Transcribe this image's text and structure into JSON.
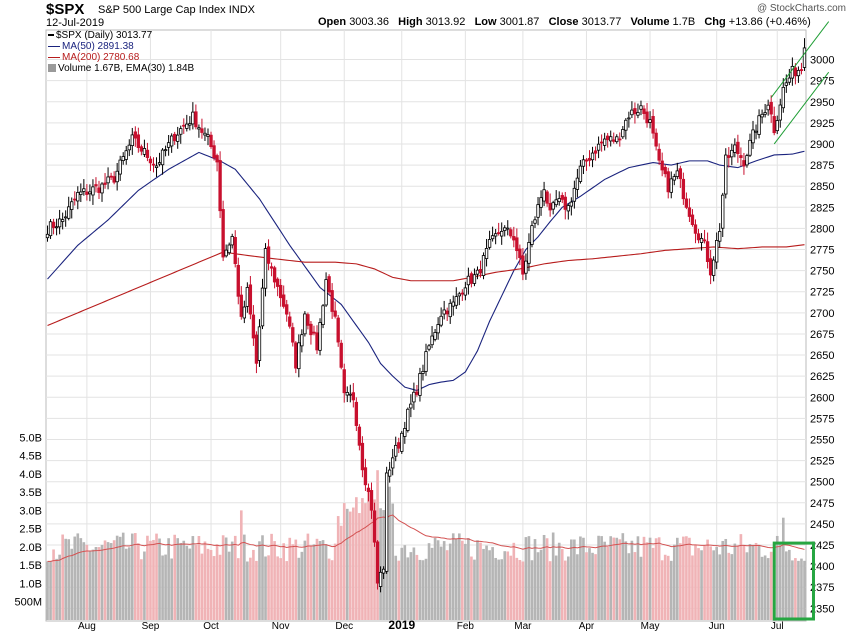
{
  "header": {
    "symbol": "$SPX",
    "description": "S&P 500 Large Cap Index",
    "exchange": "INDX",
    "date": "12-Jul-2019",
    "watermark": "@ StockCharts.com",
    "open_label": "Open",
    "open": "3003.36",
    "high_label": "High",
    "high": "3013.92",
    "low_label": "Low",
    "low": "3001.87",
    "close_label": "Close",
    "close": "3013.77",
    "volume_label": "Volume",
    "volume": "1.7B",
    "chg_label": "Chg",
    "chg": "+13.86 (+0.46%)"
  },
  "legend": {
    "price": "$SPX (Daily) 3013.77",
    "ma50": "MA(50) 2891.38",
    "ma200": "MA(200) 2780.68",
    "volume": "Volume 1.67B, EMA(30) 1.84B"
  },
  "colors": {
    "up": "#000000",
    "down": "#c8102e",
    "ma50": "#1a237e",
    "ma200": "#b71c1c",
    "grid": "#e3e3e3",
    "vol_up": "#b5b5b5",
    "vol_down": "#f0b3b6",
    "vol_ema": "#d35252",
    "trend": "#1f9e35",
    "highlight": "#26a641"
  },
  "chart_data": {
    "type": "candlestick",
    "title": "$SPX S&P 500 Large Cap Index",
    "y_axis": {
      "side": "right",
      "min": 2335,
      "max": 3035,
      "ticks": [
        2350,
        2375,
        2400,
        2425,
        2450,
        2475,
        2500,
        2525,
        2550,
        2575,
        2600,
        2625,
        2650,
        2675,
        2700,
        2725,
        2750,
        2775,
        2800,
        2825,
        2850,
        2875,
        2900,
        2925,
        2950,
        2975,
        3000
      ]
    },
    "volume_axis": {
      "side": "left",
      "min": 0,
      "max": 5.2,
      "ticks": [
        {
          "v": 0.5,
          "label": "500M"
        },
        {
          "v": 1.0,
          "label": "1.0B"
        },
        {
          "v": 1.5,
          "label": "1.5B"
        },
        {
          "v": 2.0,
          "label": "2.0B"
        },
        {
          "v": 2.5,
          "label": "2.5B"
        },
        {
          "v": 3.0,
          "label": "3.0B"
        },
        {
          "v": 3.5,
          "label": "3.5B"
        },
        {
          "v": 4.0,
          "label": "4.0B"
        },
        {
          "v": 4.5,
          "label": "4.5B"
        },
        {
          "v": 5.0,
          "label": "5.0B"
        }
      ]
    },
    "x_axis": {
      "labels": [
        {
          "label": "Aug",
          "bar": 13
        },
        {
          "label": "Sep",
          "bar": 34
        },
        {
          "label": "Oct",
          "bar": 54
        },
        {
          "label": "Nov",
          "bar": 77
        },
        {
          "label": "Dec",
          "bar": 98
        },
        {
          "label": "2019",
          "bar": 117,
          "bold": true
        },
        {
          "label": "Feb",
          "bar": 138
        },
        {
          "label": "Mar",
          "bar": 157
        },
        {
          "label": "Apr",
          "bar": 178
        },
        {
          "label": "May",
          "bar": 199
        },
        {
          "label": "Jun",
          "bar": 221
        },
        {
          "label": "Jul",
          "bar": 241
        }
      ]
    },
    "close_anchors": [
      [
        0,
        2800
      ],
      [
        5,
        2810
      ],
      [
        10,
        2840
      ],
      [
        18,
        2850
      ],
      [
        22,
        2860
      ],
      [
        28,
        2905
      ],
      [
        36,
        2875
      ],
      [
        42,
        2910
      ],
      [
        48,
        2932
      ],
      [
        53,
        2905
      ],
      [
        56,
        2880
      ],
      [
        58,
        2768
      ],
      [
        61,
        2790
      ],
      [
        64,
        2690
      ],
      [
        66,
        2725
      ],
      [
        69,
        2640
      ],
      [
        72,
        2770
      ],
      [
        76,
        2730
      ],
      [
        79,
        2700
      ],
      [
        82,
        2640
      ],
      [
        85,
        2700
      ],
      [
        89,
        2660
      ],
      [
        92,
        2740
      ],
      [
        95,
        2690
      ],
      [
        98,
        2600
      ],
      [
        101,
        2600
      ],
      [
        104,
        2520
      ],
      [
        107,
        2470
      ],
      [
        109,
        2380
      ],
      [
        111,
        2400
      ],
      [
        112,
        2505
      ],
      [
        114,
        2530
      ],
      [
        116,
        2545
      ],
      [
        118,
        2570
      ],
      [
        122,
        2610
      ],
      [
        126,
        2660
      ],
      [
        130,
        2700
      ],
      [
        134,
        2710
      ],
      [
        138,
        2735
      ],
      [
        142,
        2745
      ],
      [
        146,
        2780
      ],
      [
        150,
        2800
      ],
      [
        154,
        2790
      ],
      [
        157,
        2745
      ],
      [
        160,
        2800
      ],
      [
        164,
        2850
      ],
      [
        166,
        2815
      ],
      [
        168,
        2832
      ],
      [
        172,
        2825
      ],
      [
        176,
        2870
      ],
      [
        180,
        2890
      ],
      [
        184,
        2905
      ],
      [
        188,
        2905
      ],
      [
        192,
        2935
      ],
      [
        196,
        2943
      ],
      [
        199,
        2925
      ],
      [
        202,
        2875
      ],
      [
        205,
        2850
      ],
      [
        208,
        2865
      ],
      [
        211,
        2830
      ],
      [
        214,
        2800
      ],
      [
        217,
        2780
      ],
      [
        219,
        2750
      ],
      [
        222,
        2800
      ],
      [
        224,
        2880
      ],
      [
        227,
        2895
      ],
      [
        230,
        2880
      ],
      [
        234,
        2920
      ],
      [
        238,
        2950
      ],
      [
        240,
        2918
      ],
      [
        243,
        2965
      ],
      [
        246,
        2985
      ],
      [
        249,
        2990
      ],
      [
        250,
        3013.77
      ]
    ],
    "moving_averages": [
      {
        "name": "MA(50)",
        "value": 2891.38,
        "values": [
          [
            0,
            2740
          ],
          [
            10,
            2780
          ],
          [
            20,
            2810
          ],
          [
            30,
            2845
          ],
          [
            40,
            2870
          ],
          [
            50,
            2890
          ],
          [
            57,
            2880
          ],
          [
            62,
            2870
          ],
          [
            70,
            2835
          ],
          [
            80,
            2780
          ],
          [
            90,
            2730
          ],
          [
            97,
            2710
          ],
          [
            101,
            2690
          ],
          [
            106,
            2665
          ],
          [
            110,
            2640
          ],
          [
            114,
            2625
          ],
          [
            118,
            2612
          ],
          [
            122,
            2608
          ],
          [
            126,
            2615
          ],
          [
            130,
            2618
          ],
          [
            134,
            2620
          ],
          [
            138,
            2630
          ],
          [
            142,
            2655
          ],
          [
            146,
            2690
          ],
          [
            150,
            2720
          ],
          [
            154,
            2750
          ],
          [
            158,
            2775
          ],
          [
            162,
            2790
          ],
          [
            166,
            2808
          ],
          [
            170,
            2825
          ],
          [
            176,
            2838
          ],
          [
            184,
            2858
          ],
          [
            192,
            2872
          ],
          [
            200,
            2878
          ],
          [
            206,
            2875
          ],
          [
            212,
            2880
          ],
          [
            218,
            2880
          ],
          [
            222,
            2875
          ],
          [
            228,
            2872
          ],
          [
            234,
            2880
          ],
          [
            240,
            2887
          ],
          [
            246,
            2888
          ],
          [
            250,
            2891.38
          ]
        ]
      },
      {
        "name": "MA(200)",
        "value": 2780.68,
        "values": [
          [
            0,
            2685
          ],
          [
            10,
            2700
          ],
          [
            20,
            2715
          ],
          [
            30,
            2730
          ],
          [
            40,
            2745
          ],
          [
            50,
            2760
          ],
          [
            58,
            2772
          ],
          [
            66,
            2768
          ],
          [
            75,
            2764
          ],
          [
            85,
            2760
          ],
          [
            95,
            2760
          ],
          [
            102,
            2758
          ],
          [
            108,
            2752
          ],
          [
            114,
            2742
          ],
          [
            120,
            2738
          ],
          [
            126,
            2738
          ],
          [
            134,
            2738
          ],
          [
            140,
            2742
          ],
          [
            148,
            2748
          ],
          [
            156,
            2752
          ],
          [
            164,
            2758
          ],
          [
            172,
            2762
          ],
          [
            180,
            2764
          ],
          [
            188,
            2767
          ],
          [
            196,
            2770
          ],
          [
            204,
            2774
          ],
          [
            212,
            2776
          ],
          [
            220,
            2778
          ],
          [
            228,
            2776
          ],
          [
            236,
            2778
          ],
          [
            244,
            2778
          ],
          [
            250,
            2780.68
          ]
        ]
      }
    ],
    "volume": {
      "last": "1.67B",
      "ema30": "1.84B"
    },
    "trend_channel": [
      {
        "from": [
          239,
          2955
        ],
        "to": [
          258,
          3045
        ]
      },
      {
        "from": [
          240,
          2900
        ],
        "to": [
          258,
          2985
        ]
      }
    ],
    "series_length": 251
  }
}
